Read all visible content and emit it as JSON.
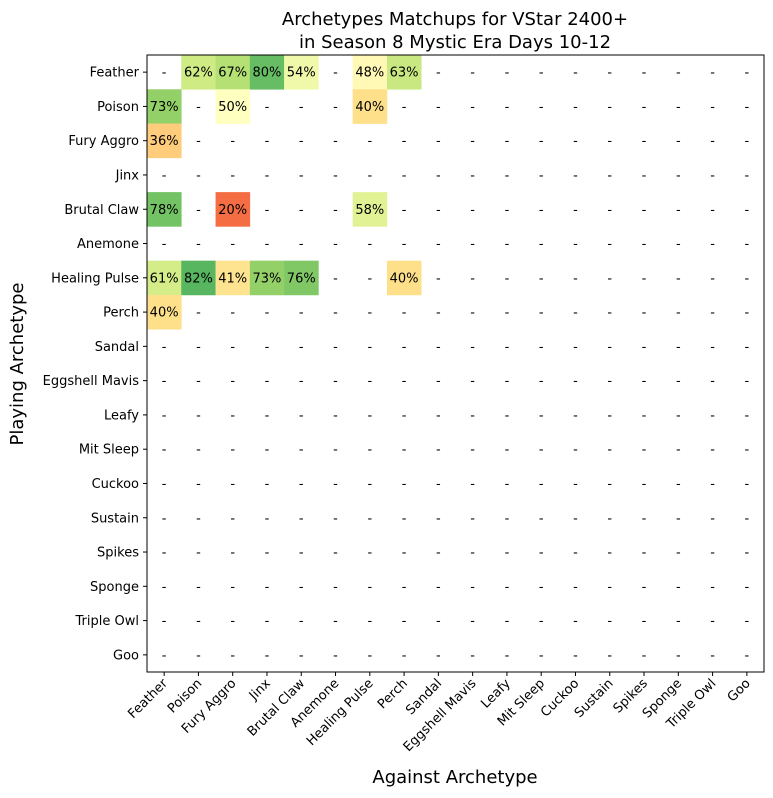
{
  "chart_data": {
    "type": "heatmap",
    "title": "Archetypes Matchups for VStar 2400+\nin Season 8 Mystic Era Days 10-12",
    "xlabel": "Against Archetype",
    "ylabel": "Playing Archetype",
    "rows": [
      "Feather",
      "Poison",
      "Fury Aggro",
      "Jinx",
      "Brutal Claw",
      "Anemone",
      "Healing Pulse",
      "Perch",
      "Sandal",
      "Eggshell Mavis",
      "Leafy",
      "Mit Sleep",
      "Cuckoo",
      "Sustain",
      "Spikes",
      "Sponge",
      "Triple Owl",
      "Goo"
    ],
    "cols": [
      "Feather",
      "Poison",
      "Fury Aggro",
      "Jinx",
      "Brutal Claw",
      "Anemone",
      "Healing Pulse",
      "Perch",
      "Sandal",
      "Eggshell Mavis",
      "Leafy",
      "Mit Sleep",
      "Cuckoo",
      "Sustain",
      "Spikes",
      "Sponge",
      "Triple Owl",
      "Goo"
    ],
    "values": [
      [
        null,
        62,
        67,
        80,
        54,
        null,
        48,
        63,
        null,
        null,
        null,
        null,
        null,
        null,
        null,
        null,
        null,
        null
      ],
      [
        73,
        null,
        50,
        null,
        null,
        null,
        40,
        null,
        null,
        null,
        null,
        null,
        null,
        null,
        null,
        null,
        null,
        null
      ],
      [
        36,
        null,
        null,
        null,
        null,
        null,
        null,
        null,
        null,
        null,
        null,
        null,
        null,
        null,
        null,
        null,
        null,
        null
      ],
      [
        null,
        null,
        null,
        null,
        null,
        null,
        null,
        null,
        null,
        null,
        null,
        null,
        null,
        null,
        null,
        null,
        null,
        null
      ],
      [
        78,
        null,
        20,
        null,
        null,
        null,
        58,
        null,
        null,
        null,
        null,
        null,
        null,
        null,
        null,
        null,
        null,
        null
      ],
      [
        null,
        null,
        null,
        null,
        null,
        null,
        null,
        null,
        null,
        null,
        null,
        null,
        null,
        null,
        null,
        null,
        null,
        null
      ],
      [
        61,
        82,
        41,
        73,
        76,
        null,
        null,
        40,
        null,
        null,
        null,
        null,
        null,
        null,
        null,
        null,
        null,
        null
      ],
      [
        40,
        null,
        null,
        null,
        null,
        null,
        null,
        null,
        null,
        null,
        null,
        null,
        null,
        null,
        null,
        null,
        null,
        null
      ],
      [
        null,
        null,
        null,
        null,
        null,
        null,
        null,
        null,
        null,
        null,
        null,
        null,
        null,
        null,
        null,
        null,
        null,
        null
      ],
      [
        null,
        null,
        null,
        null,
        null,
        null,
        null,
        null,
        null,
        null,
        null,
        null,
        null,
        null,
        null,
        null,
        null,
        null
      ],
      [
        null,
        null,
        null,
        null,
        null,
        null,
        null,
        null,
        null,
        null,
        null,
        null,
        null,
        null,
        null,
        null,
        null,
        null
      ],
      [
        null,
        null,
        null,
        null,
        null,
        null,
        null,
        null,
        null,
        null,
        null,
        null,
        null,
        null,
        null,
        null,
        null,
        null
      ],
      [
        null,
        null,
        null,
        null,
        null,
        null,
        null,
        null,
        null,
        null,
        null,
        null,
        null,
        null,
        null,
        null,
        null,
        null
      ],
      [
        null,
        null,
        null,
        null,
        null,
        null,
        null,
        null,
        null,
        null,
        null,
        null,
        null,
        null,
        null,
        null,
        null,
        null
      ],
      [
        null,
        null,
        null,
        null,
        null,
        null,
        null,
        null,
        null,
        null,
        null,
        null,
        null,
        null,
        null,
        null,
        null,
        null
      ],
      [
        null,
        null,
        null,
        null,
        null,
        null,
        null,
        null,
        null,
        null,
        null,
        null,
        null,
        null,
        null,
        null,
        null,
        null
      ],
      [
        null,
        null,
        null,
        null,
        null,
        null,
        null,
        null,
        null,
        null,
        null,
        null,
        null,
        null,
        null,
        null,
        null,
        null
      ],
      [
        null,
        null,
        null,
        null,
        null,
        null,
        null,
        null,
        null,
        null,
        null,
        null,
        null,
        null,
        null,
        null,
        null,
        null
      ]
    ],
    "value_unit": "%",
    "empty_label": "-",
    "colormap": "RdYlGn",
    "vmin": 0,
    "vmax": 100,
    "grid": false,
    "legend": "none"
  }
}
